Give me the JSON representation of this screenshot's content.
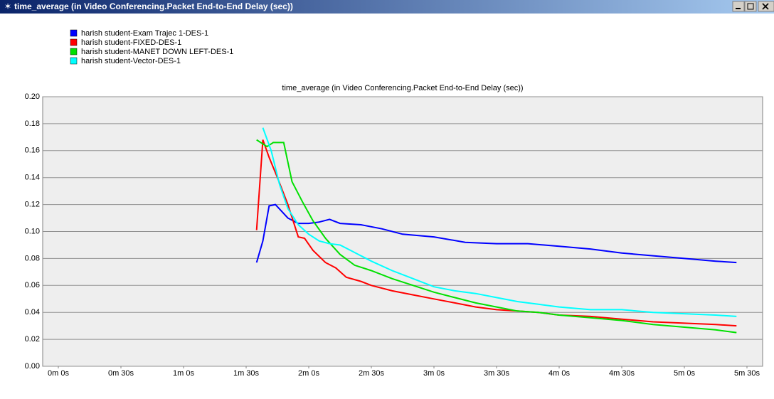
{
  "window": {
    "title": "time_average (in Video Conferencing.Packet End-to-End Delay (sec))"
  },
  "chart_data": {
    "type": "line",
    "title": "time_average (in Video Conferencing.Packet End-to-End Delay (sec))",
    "series": [
      {
        "name": "harish student-Exam Trajec 1-DES-1",
        "color": "#0000ff",
        "x": [
          95,
          98,
          101,
          104,
          107,
          110,
          115,
          120,
          125,
          130,
          135,
          145,
          155,
          165,
          180,
          195,
          210,
          225,
          240,
          255,
          270,
          285,
          300,
          315,
          325
        ],
        "values": [
          0.077,
          0.093,
          0.119,
          0.12,
          0.115,
          0.11,
          0.106,
          0.106,
          0.107,
          0.109,
          0.106,
          0.105,
          0.102,
          0.098,
          0.096,
          0.092,
          0.091,
          0.091,
          0.089,
          0.087,
          0.084,
          0.082,
          0.08,
          0.078,
          0.077
        ]
      },
      {
        "name": "harish student-FIXED-DES-1",
        "color": "#ff0000",
        "x": [
          95,
          98,
          101,
          105,
          110,
          115,
          118,
          122,
          128,
          133,
          138,
          145,
          150,
          160,
          170,
          180,
          190,
          200,
          210,
          220,
          230,
          240,
          255,
          270,
          285,
          300,
          315,
          325
        ],
        "values": [
          0.101,
          0.168,
          0.155,
          0.14,
          0.12,
          0.096,
          0.095,
          0.086,
          0.077,
          0.073,
          0.066,
          0.063,
          0.06,
          0.056,
          0.053,
          0.05,
          0.047,
          0.044,
          0.042,
          0.041,
          0.04,
          0.038,
          0.037,
          0.035,
          0.033,
          0.032,
          0.031,
          0.03
        ]
      },
      {
        "name": "harish student-MANET DOWN LEFT-DES-1",
        "color": "#00e000",
        "x": [
          95,
          100,
          103,
          108,
          112,
          117,
          122,
          128,
          135,
          142,
          150,
          160,
          170,
          180,
          190,
          200,
          210,
          220,
          230,
          240,
          255,
          270,
          285,
          300,
          315,
          325
        ],
        "values": [
          0.168,
          0.163,
          0.166,
          0.166,
          0.137,
          0.122,
          0.108,
          0.095,
          0.083,
          0.075,
          0.071,
          0.065,
          0.06,
          0.055,
          0.051,
          0.047,
          0.044,
          0.041,
          0.04,
          0.038,
          0.036,
          0.034,
          0.031,
          0.029,
          0.027,
          0.025
        ]
      },
      {
        "name": "harish student-Vector-DES-1",
        "color": "#00ffff",
        "x": [
          98,
          102,
          106,
          110,
          115,
          120,
          125,
          130,
          135,
          140,
          150,
          160,
          170,
          180,
          190,
          200,
          210,
          220,
          230,
          240,
          255,
          270,
          285,
          300,
          315,
          325
        ],
        "values": [
          0.177,
          0.16,
          0.135,
          0.117,
          0.105,
          0.098,
          0.093,
          0.091,
          0.09,
          0.086,
          0.078,
          0.071,
          0.065,
          0.059,
          0.056,
          0.054,
          0.051,
          0.048,
          0.046,
          0.044,
          0.042,
          0.042,
          0.04,
          0.039,
          0.038,
          0.037
        ]
      }
    ],
    "xlim": [
      -7.5,
      337.5
    ],
    "xticks": [
      {
        "value": 0,
        "label": "0m 0s"
      },
      {
        "value": 30,
        "label": "0m 30s"
      },
      {
        "value": 60,
        "label": "1m 0s"
      },
      {
        "value": 90,
        "label": "1m 30s"
      },
      {
        "value": 120,
        "label": "2m 0s"
      },
      {
        "value": 150,
        "label": "2m 30s"
      },
      {
        "value": 180,
        "label": "3m 0s"
      },
      {
        "value": 210,
        "label": "3m 30s"
      },
      {
        "value": 240,
        "label": "4m 0s"
      },
      {
        "value": 270,
        "label": "4m 30s"
      },
      {
        "value": 300,
        "label": "5m 0s"
      },
      {
        "value": 330,
        "label": "5m 30s"
      }
    ],
    "ylim": [
      0,
      0.2
    ],
    "yticks": [
      {
        "value": 0,
        "label": "0.00"
      },
      {
        "value": 0.02,
        "label": "0.02"
      },
      {
        "value": 0.04,
        "label": "0.04"
      },
      {
        "value": 0.06,
        "label": "0.06"
      },
      {
        "value": 0.08,
        "label": "0.08"
      },
      {
        "value": 0.1,
        "label": "0.10"
      },
      {
        "value": 0.12,
        "label": "0.12"
      },
      {
        "value": 0.14,
        "label": "0.14"
      },
      {
        "value": 0.16,
        "label": "0.16"
      },
      {
        "value": 0.18,
        "label": "0.18"
      },
      {
        "value": 0.2,
        "label": "0.20"
      }
    ],
    "grid": true,
    "legend": "top-left"
  }
}
